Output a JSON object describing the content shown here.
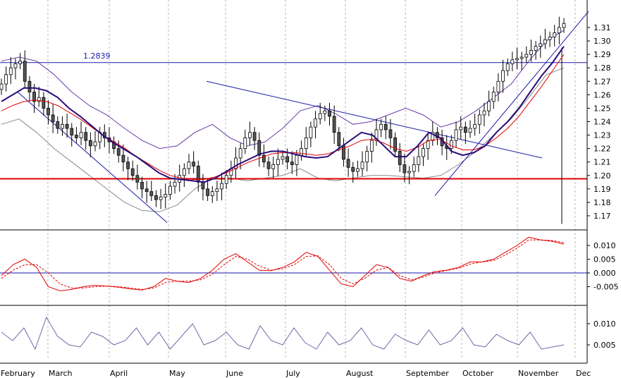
{
  "chart_data": {
    "type": "candlestick",
    "x_months": [
      "February",
      "March",
      "April",
      "May",
      "June",
      "July",
      "August",
      "September",
      "October",
      "November",
      "Dec"
    ],
    "price_panel": {
      "ylim": [
        1.16,
        1.32
      ],
      "yticks": [
        "1.31",
        "1.30",
        "1.29",
        "1.28",
        "1.27",
        "1.26",
        "1.25",
        "1.24",
        "1.23",
        "1.22",
        "1.21",
        "1.20",
        "1.19",
        "1.18",
        "1.17"
      ],
      "annotation_label": "1.2839",
      "resistance_level": 1.2839,
      "support_level": 1.1975,
      "close": [
        1.268,
        1.275,
        1.28,
        1.283,
        1.285,
        1.27,
        1.262,
        1.255,
        1.258,
        1.25,
        1.245,
        1.24,
        1.235,
        1.238,
        1.235,
        1.23,
        1.228,
        1.232,
        1.226,
        1.222,
        1.225,
        1.232,
        1.228,
        1.225,
        1.22,
        1.215,
        1.21,
        1.205,
        1.2,
        1.195,
        1.19,
        1.188,
        1.185,
        1.182,
        1.184,
        1.186,
        1.192,
        1.195,
        1.2,
        1.205,
        1.21,
        1.207,
        1.195,
        1.19,
        1.185,
        1.188,
        1.19,
        1.194,
        1.2,
        1.205,
        1.213,
        1.22,
        1.228,
        1.232,
        1.226,
        1.215,
        1.21,
        1.205,
        1.208,
        1.212,
        1.214,
        1.21,
        1.208,
        1.215,
        1.22,
        1.228,
        1.236,
        1.242,
        1.246,
        1.248,
        1.244,
        1.232,
        1.222,
        1.212,
        1.206,
        1.203,
        1.205,
        1.21,
        1.218,
        1.226,
        1.234,
        1.238,
        1.234,
        1.228,
        1.218,
        1.208,
        1.202,
        1.203,
        1.208,
        1.214,
        1.22,
        1.226,
        1.232,
        1.228,
        1.222,
        1.22,
        1.226,
        1.234,
        1.236,
        1.232,
        1.235,
        1.238,
        1.245,
        1.248,
        1.255,
        1.262,
        1.27,
        1.278,
        1.283,
        1.286,
        1.287,
        1.288,
        1.29,
        1.293,
        1.296,
        1.298,
        1.301,
        1.303,
        1.306,
        1.31,
        1.313
      ],
      "ma_fast": [
        1.255,
        1.26,
        1.265,
        1.265,
        1.263,
        1.258,
        1.25,
        1.244,
        1.237,
        1.23,
        1.224,
        1.219,
        1.214,
        1.208,
        1.202,
        1.198,
        1.197,
        1.196,
        1.195,
        1.198,
        1.203,
        1.208,
        1.212,
        1.216,
        1.218,
        1.218,
        1.216,
        1.214,
        1.213,
        1.214,
        1.22,
        1.226,
        1.232,
        1.23,
        1.222,
        1.214,
        1.214,
        1.222,
        1.232,
        1.228,
        1.218,
        1.215,
        1.217,
        1.222,
        1.232,
        1.24,
        1.25,
        1.262,
        1.274,
        1.284,
        1.296
      ],
      "ma_slow": [
        1.248,
        1.252,
        1.255,
        1.256,
        1.255,
        1.252,
        1.247,
        1.242,
        1.236,
        1.23,
        1.225,
        1.22,
        1.214,
        1.209,
        1.204,
        1.2,
        1.198,
        1.197,
        1.197,
        1.199,
        1.202,
        1.206,
        1.21,
        1.213,
        1.216,
        1.217,
        1.217,
        1.216,
        1.215,
        1.216,
        1.219,
        1.222,
        1.226,
        1.227,
        1.224,
        1.22,
        1.218,
        1.221,
        1.226,
        1.227,
        1.222,
        1.219,
        1.219,
        1.222,
        1.228,
        1.235,
        1.244,
        1.255,
        1.266,
        1.278,
        1.29
      ],
      "band_upper": [
        1.285,
        1.288,
        1.285,
        1.275,
        1.262,
        1.252,
        1.245,
        1.235,
        1.226,
        1.22,
        1.222,
        1.232,
        1.238,
        1.228,
        1.222,
        1.225,
        1.235,
        1.248,
        1.252,
        1.246,
        1.238,
        1.24,
        1.245,
        1.25,
        1.245,
        1.236,
        1.24,
        1.248,
        1.258,
        1.268,
        1.285,
        1.3,
        1.308
      ],
      "band_lower": [
        1.238,
        1.242,
        1.232,
        1.22,
        1.21,
        1.2,
        1.19,
        1.18,
        1.174,
        1.173,
        1.178,
        1.19,
        1.198,
        1.198,
        1.196,
        1.198,
        1.2,
        1.205,
        1.198,
        1.196,
        1.198,
        1.2,
        1.2,
        1.199,
        1.198,
        1.2,
        1.208,
        1.218,
        1.23,
        1.242,
        1.258,
        1.275,
        1.28
      ]
    },
    "macd_panel": {
      "yticks": [
        "0.010",
        "0.005",
        "0.000",
        "-0.005"
      ],
      "ylim": [
        -0.0075,
        0.0125
      ],
      "macd": [
        -0.001,
        0.003,
        0.005,
        0.002,
        -0.005,
        -0.0065,
        -0.006,
        -0.005,
        -0.0045,
        -0.0048,
        -0.0052,
        -0.0058,
        -0.0062,
        -0.005,
        -0.002,
        -0.003,
        -0.0035,
        -0.002,
        0.001,
        0.005,
        0.007,
        0.004,
        0.001,
        0.0008,
        0.002,
        0.004,
        0.0075,
        0.006,
        0.001,
        -0.004,
        -0.005,
        -0.001,
        0.003,
        0.002,
        -0.002,
        -0.003,
        -0.001,
        0.0005,
        0.001,
        0.002,
        0.004,
        0.004,
        0.005,
        0.0075,
        0.01,
        0.013,
        0.012,
        0.0115,
        0.0105
      ],
      "signal": [
        -0.002,
        0.001,
        0.003,
        0.003,
        0.0,
        -0.004,
        -0.0055,
        -0.0055,
        -0.005,
        -0.0048,
        -0.005,
        -0.0055,
        -0.006,
        -0.0055,
        -0.0035,
        -0.003,
        -0.003,
        -0.0025,
        -0.0005,
        0.003,
        0.006,
        0.005,
        0.0025,
        0.001,
        0.0015,
        0.003,
        0.006,
        0.0062,
        0.003,
        -0.002,
        -0.004,
        -0.002,
        0.001,
        0.002,
        -0.001,
        -0.0025,
        -0.0015,
        0.0,
        0.0009,
        0.0017,
        0.0032,
        0.004,
        0.0045,
        0.0065,
        0.009,
        0.012,
        0.012,
        0.0118,
        0.011
      ]
    },
    "osc_panel": {
      "yticks": [
        "0.010",
        "0.005"
      ],
      "ylim": [
        0.0015,
        0.0125
      ],
      "values": [
        0.008,
        0.006,
        0.009,
        0.004,
        0.0115,
        0.007,
        0.005,
        0.0045,
        0.008,
        0.007,
        0.005,
        0.006,
        0.009,
        0.005,
        0.008,
        0.004,
        0.007,
        0.01,
        0.005,
        0.006,
        0.008,
        0.005,
        0.004,
        0.0095,
        0.006,
        0.005,
        0.009,
        0.0055,
        0.004,
        0.008,
        0.005,
        0.006,
        0.009,
        0.005,
        0.004,
        0.0075,
        0.006,
        0.005,
        0.0085,
        0.005,
        0.006,
        0.009,
        0.005,
        0.0045,
        0.0075,
        0.006,
        0.005,
        0.008,
        0.004,
        0.0045,
        0.005
      ]
    }
  }
}
